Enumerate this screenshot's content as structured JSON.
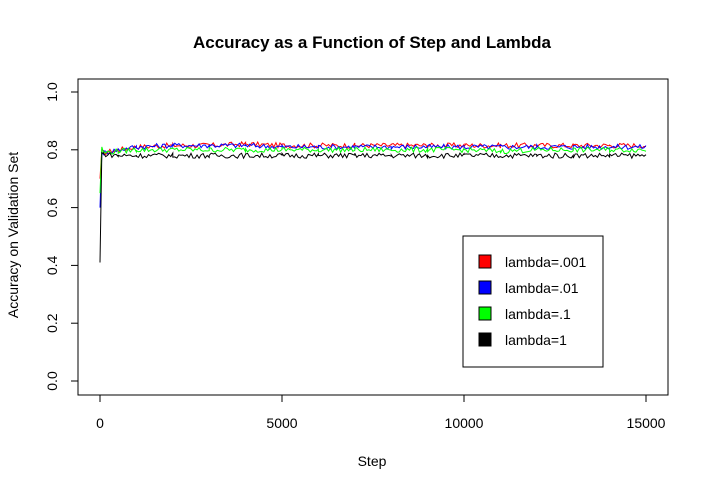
{
  "chart_data": {
    "type": "line",
    "title": "Accuracy as a Function of Step and Lambda",
    "xlabel": "Step",
    "ylabel": "Accuracy on Validation Set",
    "xlim": [
      0,
      15000
    ],
    "ylim": [
      0,
      1
    ],
    "x_ticks": [
      0,
      5000,
      10000,
      15000
    ],
    "y_ticks": [
      0.0,
      0.2,
      0.4,
      0.6,
      0.8,
      1.0
    ],
    "x_tick_labels": [
      "0",
      "5000",
      "10000",
      "15000"
    ],
    "y_tick_labels": [
      "0.0",
      "0.2",
      "0.4",
      "0.6",
      "0.8",
      "1.0"
    ],
    "grid": false,
    "legend_position": "bottom-right",
    "series": [
      {
        "name": "lambda=.001",
        "color": "#ff0000",
        "points": [
          [
            0,
            0.7
          ],
          [
            50,
            0.8
          ],
          [
            100,
            0.79
          ],
          [
            500,
            0.8
          ],
          [
            1000,
            0.81
          ],
          [
            2000,
            0.815
          ],
          [
            3000,
            0.815
          ],
          [
            4000,
            0.82
          ],
          [
            5000,
            0.815
          ],
          [
            6000,
            0.815
          ],
          [
            7000,
            0.815
          ],
          [
            8000,
            0.815
          ],
          [
            9000,
            0.815
          ],
          [
            10000,
            0.815
          ],
          [
            11000,
            0.815
          ],
          [
            12000,
            0.815
          ],
          [
            13000,
            0.815
          ],
          [
            14000,
            0.815
          ],
          [
            15000,
            0.815
          ]
        ]
      },
      {
        "name": "lambda=.01",
        "color": "#0000ff",
        "points": [
          [
            0,
            0.6
          ],
          [
            50,
            0.79
          ],
          [
            100,
            0.79
          ],
          [
            500,
            0.8
          ],
          [
            1000,
            0.81
          ],
          [
            2000,
            0.815
          ],
          [
            3000,
            0.815
          ],
          [
            4000,
            0.815
          ],
          [
            5000,
            0.81
          ],
          [
            6000,
            0.81
          ],
          [
            7000,
            0.81
          ],
          [
            8000,
            0.81
          ],
          [
            9000,
            0.81
          ],
          [
            10000,
            0.81
          ],
          [
            11000,
            0.81
          ],
          [
            12000,
            0.81
          ],
          [
            13000,
            0.81
          ],
          [
            14000,
            0.81
          ],
          [
            15000,
            0.81
          ]
        ]
      },
      {
        "name": "lambda=.1",
        "color": "#00ff00",
        "points": [
          [
            0,
            0.65
          ],
          [
            50,
            0.81
          ],
          [
            100,
            0.79
          ],
          [
            500,
            0.795
          ],
          [
            1000,
            0.8
          ],
          [
            2000,
            0.8
          ],
          [
            3000,
            0.8
          ],
          [
            4000,
            0.8
          ],
          [
            5000,
            0.8
          ],
          [
            6000,
            0.8
          ],
          [
            7000,
            0.8
          ],
          [
            8000,
            0.8
          ],
          [
            9000,
            0.8
          ],
          [
            10000,
            0.8
          ],
          [
            11000,
            0.795
          ],
          [
            12000,
            0.8
          ],
          [
            13000,
            0.8
          ],
          [
            14000,
            0.8
          ],
          [
            15000,
            0.8
          ]
        ]
      },
      {
        "name": "lambda=1",
        "color": "#000000",
        "points": [
          [
            0,
            0.41
          ],
          [
            50,
            0.79
          ],
          [
            100,
            0.785
          ],
          [
            500,
            0.78
          ],
          [
            1000,
            0.78
          ],
          [
            2000,
            0.78
          ],
          [
            3000,
            0.78
          ],
          [
            4000,
            0.78
          ],
          [
            5000,
            0.78
          ],
          [
            6000,
            0.78
          ],
          [
            7000,
            0.78
          ],
          [
            8000,
            0.78
          ],
          [
            9000,
            0.78
          ],
          [
            10000,
            0.78
          ],
          [
            11000,
            0.78
          ],
          [
            12000,
            0.78
          ],
          [
            13000,
            0.78
          ],
          [
            14000,
            0.78
          ],
          [
            15000,
            0.78
          ]
        ]
      }
    ]
  }
}
